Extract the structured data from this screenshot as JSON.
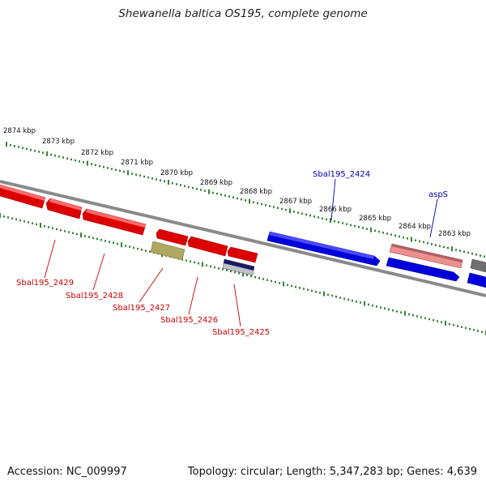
{
  "title": "Shewanella baltica OS195, complete genome",
  "footer": {
    "accession": "Accession: NC_009997",
    "topology": "Topology: circular; Length: 5,347,283 bp; Genes: 4,639"
  },
  "colors": {
    "forward_gene": "#0000dd",
    "reverse_gene": "#dd0000",
    "rna": "#e88888",
    "pseudo": "#b0a860",
    "misc": "#222266",
    "backbone": "#888888",
    "ticks": "#1a7a1a",
    "label_forward": "#0000aa",
    "label_reverse": "#cc0000"
  },
  "scale_ticks": [
    {
      "label": "2874 kbp",
      "kbp": 2874
    },
    {
      "label": "2873 kbp",
      "kbp": 2873
    },
    {
      "label": "2872 kbp",
      "kbp": 2872
    },
    {
      "label": "2871 kbp",
      "kbp": 2871
    },
    {
      "label": "2870 kbp",
      "kbp": 2870
    },
    {
      "label": "2869 kbp",
      "kbp": 2869
    },
    {
      "label": "2868 kbp",
      "kbp": 2868
    },
    {
      "label": "2867 kbp",
      "kbp": 2867
    },
    {
      "label": "2866 kbp",
      "kbp": 2866
    },
    {
      "label": "2865 kbp",
      "kbp": 2865
    },
    {
      "label": "2864 kbp",
      "kbp": 2864
    },
    {
      "label": "2863 kbp",
      "kbp": 2863
    }
  ],
  "gene_labels": [
    {
      "name": "Sbal195_2424",
      "strand": "forward"
    },
    {
      "name": "aspS",
      "strand": "forward"
    },
    {
      "name": "Sbal195_2429",
      "strand": "reverse"
    },
    {
      "name": "Sbal195_2428",
      "strand": "reverse"
    },
    {
      "name": "Sbal195_2427",
      "strand": "reverse"
    },
    {
      "name": "Sbal195_2426",
      "strand": "reverse"
    },
    {
      "name": "Sbal195_2425",
      "strand": "reverse"
    }
  ]
}
